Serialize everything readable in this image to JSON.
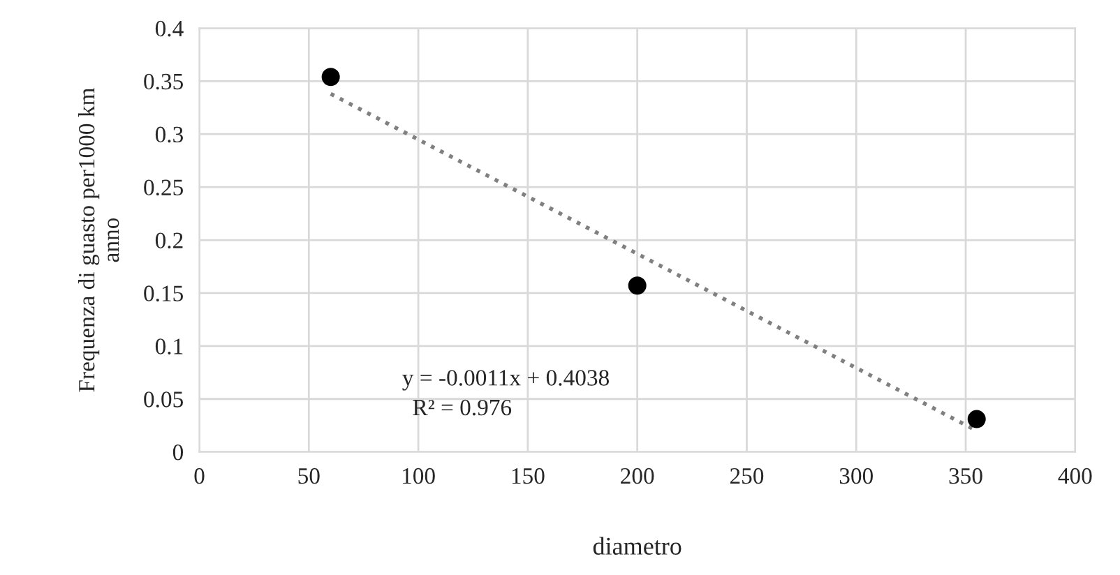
{
  "chart_data": {
    "type": "scatter",
    "xlabel": "diametro",
    "ylabel": "Frequenza di guasto per1000 km\nanno",
    "series": [
      {
        "x": [
          60,
          200,
          355
        ],
        "values": [
          0.354,
          0.157,
          0.031
        ],
        "color": "#000000",
        "marker": "circle"
      },
      {
        "type": "line",
        "x": [
          60,
          355
        ],
        "values": [
          0.338,
          0.02
        ],
        "color": "#808080",
        "line_style": "dotted",
        "marker": "none"
      }
    ],
    "xlim": [
      0,
      400
    ],
    "xticks": [
      0,
      50,
      100,
      150,
      200,
      250,
      300,
      350,
      400
    ],
    "ylim": [
      0,
      0.4
    ],
    "yticks": [
      0,
      0.05,
      0.1,
      0.15,
      0.2,
      0.25,
      0.3,
      0.35,
      0.4
    ],
    "grid": true,
    "annotations": [
      "y = -0.0011x + 0.4038",
      "R² = 0.976"
    ]
  }
}
